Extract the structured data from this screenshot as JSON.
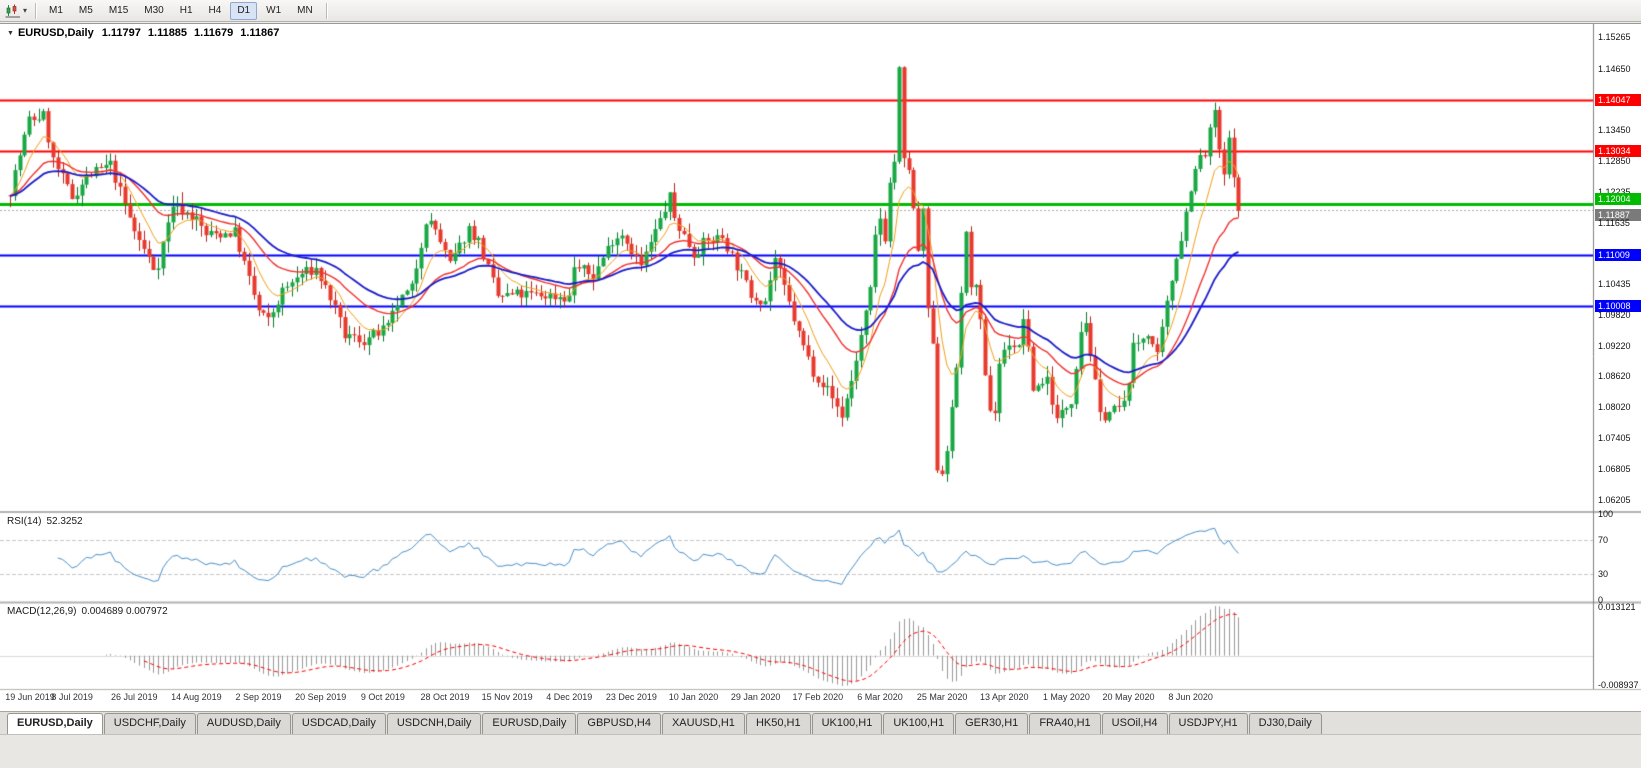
{
  "toolbar": {
    "timeframes": [
      "M1",
      "M5",
      "M15",
      "M30",
      "H1",
      "H4",
      "D1",
      "W1",
      "MN"
    ],
    "active_timeframe": "D1"
  },
  "chart": {
    "title": {
      "symbol": "EURUSD,Daily",
      "open": "1.11797",
      "high": "1.11885",
      "low": "1.11679",
      "close": "1.11867"
    }
  },
  "indicators": {
    "rsi": {
      "label": "RSI(14)",
      "value": "52.3252",
      "axis_labels": [
        "100",
        "70",
        "30",
        "0"
      ],
      "levels": [
        70,
        30
      ],
      "color": "#4a90c8"
    },
    "macd": {
      "label": "MACD(12,26,9)",
      "values": "0.004689 0.007972",
      "axis_top": "0.013121",
      "axis_bottom": "-0.008937",
      "histogram_color": "#9a9a9a",
      "signal_color": "#ff0000"
    }
  },
  "price_axis": [
    {
      "label": "1.15265",
      "price": 1.15265,
      "type": "tick"
    },
    {
      "label": "1.14650",
      "price": 1.1465,
      "type": "tick"
    },
    {
      "label": "1.14047",
      "price": 1.14047,
      "type": "red"
    },
    {
      "label": "1.13450",
      "price": 1.1345,
      "type": "tick"
    },
    {
      "label": "1.13034",
      "price": 1.13034,
      "type": "red"
    },
    {
      "label": "1.12850",
      "price": 1.1285,
      "type": "tick"
    },
    {
      "label": "1.12235",
      "price": 1.12235,
      "type": "tick"
    },
    {
      "label": "1.12004",
      "price": 1.12004,
      "type": "green"
    },
    {
      "label": "1.11887",
      "price": 1.11887,
      "type": "current"
    },
    {
      "label": "1.11635",
      "price": 1.11635,
      "type": "tick"
    },
    {
      "label": "1.11009",
      "price": 1.11009,
      "type": "blue"
    },
    {
      "label": "1.10435",
      "price": 1.10435,
      "type": "tick"
    },
    {
      "label": "1.10008",
      "price": 1.10008,
      "type": "blue"
    },
    {
      "label": "1.09820",
      "price": 1.0982,
      "type": "tick"
    },
    {
      "label": "1.09220",
      "price": 1.0922,
      "type": "tick"
    },
    {
      "label": "1.08620",
      "price": 1.0862,
      "type": "tick"
    },
    {
      "label": "1.08020",
      "price": 1.0802,
      "type": "tick"
    },
    {
      "label": "1.07405",
      "price": 1.07405,
      "type": "tick"
    },
    {
      "label": "1.06805",
      "price": 1.06805,
      "type": "tick"
    },
    {
      "label": "1.06205",
      "price": 1.06205,
      "type": "tick"
    }
  ],
  "colors": {
    "red": "#ff0000",
    "blue": "#0000ff",
    "green": "#00bb00",
    "current": "#7a7a7a",
    "up_fill": "#19a844",
    "up_edge": "#0a7c2f",
    "down_fill": "#e8392d",
    "down_edge": "#b5271e",
    "separator": "#b5b2ae",
    "axis_divider": "#808080",
    "current_line": "#aaaaaa",
    "level_dash": "#c8c8c8"
  },
  "date_axis": [
    "19 Jun 2019",
    "8 Jul 2019",
    "26 Jul 2019",
    "14 Aug 2019",
    "2 Sep 2019",
    "20 Sep 2019",
    "9 Oct 2019",
    "28 Oct 2019",
    "15 Nov 2019",
    "4 Dec 2019",
    "23 Dec 2019",
    "10 Jan 2020",
    "29 Jan 2020",
    "17 Feb 2020",
    "6 Mar 2020",
    "25 Mar 2020",
    "13 Apr 2020",
    "1 May 2020",
    "20 May 2020",
    "8 Jun 2020"
  ],
  "tabs": {
    "active_index": 0,
    "items": [
      "EURUSD,Daily",
      "USDCHF,Daily",
      "AUDUSD,Daily",
      "USDCAD,Daily",
      "USDCNH,Daily",
      "EURUSD,Daily",
      "GBPUSD,H4",
      "XAUUSD,H1",
      "HK50,H1",
      "UK100,H1",
      "UK100,H1",
      "GER30,H1",
      "FRA40,H1",
      "USOil,H4",
      "USDJPY,H1",
      "DJ30,Daily"
    ]
  },
  "chart_data": {
    "type": "candlestick",
    "symbol": "EURUSD",
    "timeframe": "Daily",
    "bar_count": 258,
    "ylim": [
      1.06,
      1.1545
    ],
    "current_price": 1.11887,
    "last_close": 1.11867,
    "price_path_anchors": [
      [
        0,
        1.1227
      ],
      [
        4,
        1.1365
      ],
      [
        7,
        1.1373
      ],
      [
        9,
        1.1285
      ],
      [
        13,
        1.1213
      ],
      [
        16,
        1.1253
      ],
      [
        21,
        1.1277
      ],
      [
        26,
        1.1146
      ],
      [
        30,
        1.1075
      ],
      [
        31,
        1.1085
      ],
      [
        34,
        1.12
      ],
      [
        39,
        1.117
      ],
      [
        41,
        1.1139
      ],
      [
        47,
        1.1145
      ],
      [
        52,
        1.099
      ],
      [
        54,
        1.097
      ],
      [
        57,
        1.1028
      ],
      [
        61,
        1.1063
      ],
      [
        64,
        1.1072
      ],
      [
        67,
        1.1017
      ],
      [
        70,
        1.0942
      ],
      [
        74,
        1.0932
      ],
      [
        79,
        1.0957
      ],
      [
        81,
        1.1004
      ],
      [
        84,
        1.1034
      ],
      [
        87,
        1.117
      ],
      [
        89,
        1.115
      ],
      [
        92,
        1.108
      ],
      [
        96,
        1.1152
      ],
      [
        98,
        1.1127
      ],
      [
        102,
        1.1018
      ],
      [
        106,
        1.1022
      ],
      [
        112,
        1.1021
      ],
      [
        117,
        1.1017
      ],
      [
        118,
        1.1078
      ],
      [
        122,
        1.1059
      ],
      [
        126,
        1.1131
      ],
      [
        128,
        1.1143
      ],
      [
        132,
        1.1078
      ],
      [
        138,
        1.1213
      ],
      [
        139,
        1.1172
      ],
      [
        143,
        1.1103
      ],
      [
        145,
        1.1122
      ],
      [
        149,
        1.1136
      ],
      [
        155,
        1.1023
      ],
      [
        158,
        1.1011
      ],
      [
        160,
        1.1093
      ],
      [
        165,
        1.0945
      ],
      [
        168,
        1.0873
      ],
      [
        171,
        1.0836
      ],
      [
        174,
        1.0785
      ],
      [
        176,
        1.0853
      ],
      [
        180,
        1.1027
      ],
      [
        181,
        1.1134
      ],
      [
        182,
        1.1173
      ],
      [
        183,
        1.1135
      ],
      [
        184,
        1.124
      ],
      [
        185,
        1.1285
      ],
      [
        186,
        1.146
      ],
      [
        187,
        1.1281
      ],
      [
        188,
        1.1271
      ],
      [
        189,
        1.1184
      ],
      [
        190,
        1.1109
      ],
      [
        191,
        1.118
      ],
      [
        192,
        1.0995
      ],
      [
        193,
        1.0916
      ],
      [
        194,
        1.0685
      ],
      [
        195,
        1.0675
      ],
      [
        196,
        1.0725
      ],
      [
        197,
        1.0791
      ],
      [
        198,
        1.088
      ],
      [
        199,
        1.103
      ],
      [
        200,
        1.1136
      ],
      [
        201,
        1.1047
      ],
      [
        202,
        1.1031
      ],
      [
        203,
        1.0963
      ],
      [
        204,
        1.0856
      ],
      [
        205,
        1.0801
      ],
      [
        206,
        1.0793
      ],
      [
        207,
        1.0889
      ],
      [
        209,
        1.093
      ],
      [
        211,
        1.0915
      ],
      [
        212,
        1.098
      ],
      [
        214,
        1.0838
      ],
      [
        217,
        1.0858
      ],
      [
        219,
        1.0775
      ],
      [
        222,
        1.0818
      ],
      [
        224,
        1.0955
      ],
      [
        225,
        1.097
      ],
      [
        228,
        1.0783
      ],
      [
        233,
        1.0805
      ],
      [
        235,
        1.0917
      ],
      [
        238,
        1.0949
      ],
      [
        240,
        1.0898
      ],
      [
        242,
        1.1002
      ],
      [
        244,
        1.1101
      ],
      [
        245,
        1.1134
      ],
      [
        247,
        1.1234
      ],
      [
        249,
        1.1292
      ],
      [
        250,
        1.1294
      ],
      [
        251,
        1.134
      ],
      [
        252,
        1.1385
      ],
      [
        253,
        1.1298
      ],
      [
        254,
        1.1256
      ],
      [
        255,
        1.1323
      ],
      [
        256,
        1.1264
      ],
      [
        257,
        1.1187
      ]
    ],
    "hlines": [
      {
        "price": 1.14047,
        "color": "#ff0000",
        "width": 2,
        "label": "1.14047"
      },
      {
        "price": 1.13034,
        "color": "#ff0000",
        "width": 2,
        "label": "1.13034"
      },
      {
        "price": 1.12004,
        "color": "#00bb00",
        "width": 3,
        "label": "1.12004"
      },
      {
        "price": 1.11009,
        "color": "#0000ff",
        "width": 2,
        "label": "1.11009"
      },
      {
        "price": 1.10008,
        "color": "#0000ff",
        "width": 2,
        "label": "1.10008"
      }
    ],
    "moving_averages": [
      {
        "color": "#f2a01b",
        "period": 8,
        "width": 1
      },
      {
        "color": "#f03232",
        "period": 21,
        "width": 1.4
      },
      {
        "color": "#1e1ec8",
        "period": 34,
        "width": 1.8
      }
    ],
    "rsi": {
      "period": 14,
      "current": 52.3252
    },
    "macd": {
      "fast": 12,
      "slow": 26,
      "signal_period": 9,
      "current_macd": 0.004689,
      "current_signal": 0.007972
    }
  }
}
